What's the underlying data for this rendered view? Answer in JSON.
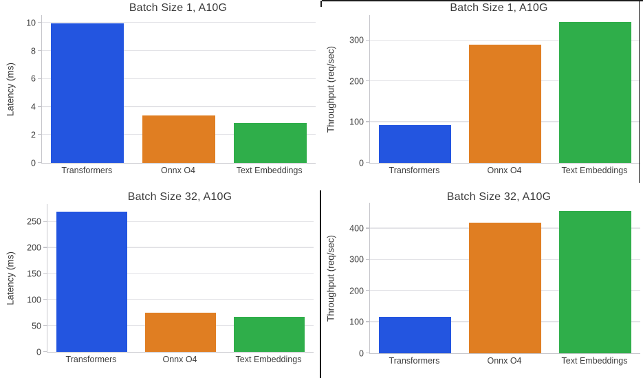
{
  "figure": {
    "background": "#ffffff",
    "grid_color": "#e3e3e7",
    "spine_color": "#c6c6cb",
    "title_color": "#3a3a3a",
    "tick_color": "#3d3d3d",
    "divider_color": "#1b1b1b"
  },
  "palette": {
    "Transformers": "#2355e0",
    "Onnx O4": "#e07e22",
    "Text Embeddings": "#2fae4a"
  },
  "chart_data": [
    {
      "id": "batch1-latency",
      "type": "bar",
      "title": "Batch Size 1, A10G",
      "ylabel": "Latency (ms)",
      "xlabel": "",
      "categories": [
        "Transformers",
        "Onnx O4",
        "Text Embeddings"
      ],
      "values": [
        9.95,
        3.4,
        2.85
      ],
      "yticks": [
        0,
        2,
        4,
        6,
        8,
        10
      ],
      "ylim": [
        0,
        10.56
      ],
      "grid": "horizontal",
      "legend": "none"
    },
    {
      "id": "batch1-throughput",
      "type": "bar",
      "title": "Batch Size 1, A10G",
      "ylabel": "Throughput (req/sec)",
      "xlabel": "",
      "categories": [
        "Transformers",
        "Onnx O4",
        "Text Embeddings"
      ],
      "values": [
        92,
        290,
        345
      ],
      "yticks": [
        0,
        100,
        200,
        300
      ],
      "ylim": [
        0,
        362
      ],
      "grid": "horizontal",
      "legend": "none"
    },
    {
      "id": "batch32-latency",
      "type": "bar",
      "title": "Batch Size 32, A10G",
      "ylabel": "Latency (ms)",
      "xlabel": "",
      "categories": [
        "Transformers",
        "Onnx O4",
        "Text Embeddings"
      ],
      "values": [
        270,
        75,
        67
      ],
      "yticks": [
        0,
        50,
        100,
        150,
        200,
        250
      ],
      "ylim": [
        0,
        284
      ],
      "grid": "horizontal",
      "legend": "none"
    },
    {
      "id": "batch32-throughput",
      "type": "bar",
      "title": "Batch Size 32, A10G",
      "ylabel": "Throughput (req/sec)",
      "xlabel": "",
      "categories": [
        "Transformers",
        "Onnx O4",
        "Text Embeddings"
      ],
      "values": [
        117,
        420,
        456
      ],
      "yticks": [
        0,
        100,
        200,
        300,
        400
      ],
      "ylim": [
        0,
        483
      ],
      "grid": "horizontal",
      "legend": "none"
    }
  ]
}
